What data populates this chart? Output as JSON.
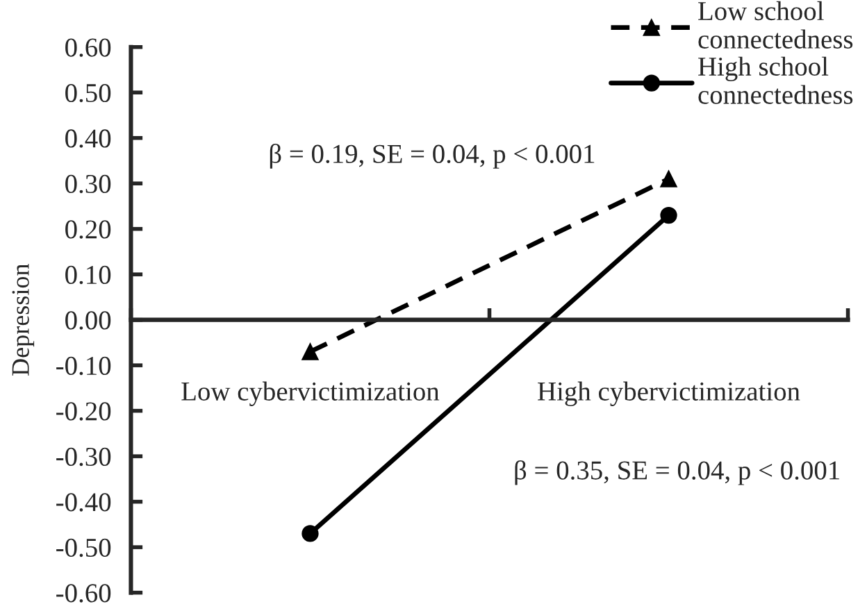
{
  "chart_data": {
    "type": "line",
    "ylabel": "Depression",
    "categories": [
      "Low cybervictimization",
      "High cybervictimization"
    ],
    "series": [
      {
        "name": "Low school connectedness",
        "color": "#000000",
        "values": [
          -0.07,
          0.31
        ],
        "marker": "triangle",
        "line_style": "dashed"
      },
      {
        "name": "High school connectedness",
        "color": "#000000",
        "values": [
          -0.47,
          0.23
        ],
        "marker": "circle",
        "line_style": "solid"
      }
    ],
    "ylim": [
      -0.6,
      0.6
    ],
    "yticks": [
      {
        "value": -0.6,
        "label": "-0.60"
      },
      {
        "value": -0.5,
        "label": "-0.50"
      },
      {
        "value": -0.4,
        "label": "-0.40"
      },
      {
        "value": -0.3,
        "label": "-0.30"
      },
      {
        "value": -0.2,
        "label": "-0.20"
      },
      {
        "value": -0.1,
        "label": "-0.10"
      },
      {
        "value": 0,
        "label": "0.00"
      },
      {
        "value": 0.1,
        "label": "0.10"
      },
      {
        "value": 0.2,
        "label": "0.20"
      },
      {
        "value": 0.3,
        "label": "0.30"
      },
      {
        "value": 0.4,
        "label": "0.40"
      },
      {
        "value": 0.5,
        "label": "0.50"
      },
      {
        "value": 0.6,
        "label": "0.60"
      }
    ],
    "annotations": [
      "β = 0.19, SE = 0.04, p < 0.001",
      "β = 0.35, SE = 0.04, p < 0.001"
    ],
    "legend": "top right",
    "grid": false
  }
}
